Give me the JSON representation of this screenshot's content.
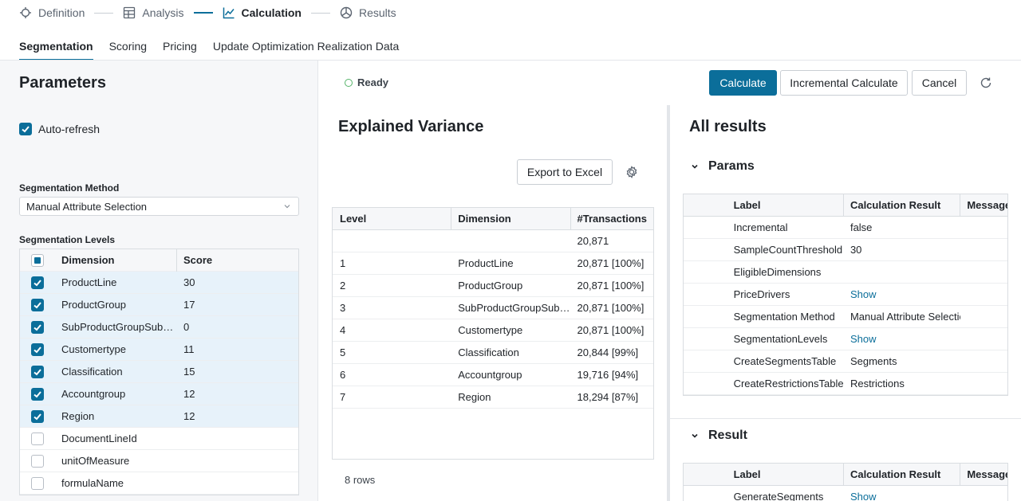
{
  "stepper": [
    {
      "label": "Definition",
      "icon": "crosshair-icon"
    },
    {
      "label": "Analysis",
      "icon": "table-icon"
    },
    {
      "label": "Calculation",
      "icon": "line-chart-icon"
    },
    {
      "label": "Results",
      "icon": "pie-chart-icon"
    }
  ],
  "tabs": [
    "Segmentation",
    "Scoring",
    "Pricing",
    "Update Optimization Realization Data"
  ],
  "left": {
    "title": "Parameters",
    "auto_refresh": "Auto-refresh",
    "method_label": "Segmentation Method",
    "method_value": "Manual Attribute Selection",
    "levels_label": "Segmentation Levels",
    "levels_header": {
      "dimension": "Dimension",
      "score": "Score"
    },
    "levels": [
      {
        "dimension": "ProductLine",
        "score": "30",
        "checked": true
      },
      {
        "dimension": "ProductGroup",
        "score": "17",
        "checked": true
      },
      {
        "dimension": "SubProductGroupSubProductGroup",
        "score": "0",
        "checked": true
      },
      {
        "dimension": "Customertype",
        "score": "11",
        "checked": true
      },
      {
        "dimension": "Classification",
        "score": "15",
        "checked": true
      },
      {
        "dimension": "Accountgroup",
        "score": "12",
        "checked": true
      },
      {
        "dimension": "Region",
        "score": "12",
        "checked": true
      },
      {
        "dimension": "DocumentLineId",
        "score": "",
        "checked": false
      },
      {
        "dimension": "unitOfMeasure",
        "score": "",
        "checked": false
      },
      {
        "dimension": "formulaName",
        "score": "",
        "checked": false
      }
    ]
  },
  "toolbar": {
    "status": "Ready",
    "calculate": "Calculate",
    "incremental": "Incremental Calculate",
    "cancel": "Cancel"
  },
  "middle": {
    "title": "Explained Variance",
    "export": "Export to Excel",
    "header": {
      "level": "Level",
      "dimension": "Dimension",
      "transactions": "#Transactions"
    },
    "rows": [
      {
        "level": "",
        "dimension": "",
        "transactions": "20,871"
      },
      {
        "level": "1",
        "dimension": "ProductLine",
        "transactions": "20,871 [100%]"
      },
      {
        "level": "2",
        "dimension": "ProductGroup",
        "transactions": "20,871 [100%]"
      },
      {
        "level": "3",
        "dimension": "SubProductGroupSubProductGroup",
        "transactions": "20,871 [100%]"
      },
      {
        "level": "4",
        "dimension": "Customertype",
        "transactions": "20,871 [100%]"
      },
      {
        "level": "5",
        "dimension": "Classification",
        "transactions": "20,844 [99%]"
      },
      {
        "level": "6",
        "dimension": "Accountgroup",
        "transactions": "19,716 [94%]"
      },
      {
        "level": "7",
        "dimension": "Region",
        "transactions": "18,294 [87%]"
      }
    ],
    "row_count": "8 rows"
  },
  "right": {
    "title": "All results",
    "params_section": "Params",
    "result_section": "Result",
    "header": {
      "label": "Label",
      "result": "Calculation Result",
      "message": "Message"
    },
    "params": [
      {
        "label": "Incremental",
        "result": "false",
        "link": false
      },
      {
        "label": "SampleCountThreshold",
        "result": "30",
        "link": false
      },
      {
        "label": "EligibleDimensions",
        "result": "",
        "link": false
      },
      {
        "label": "PriceDrivers",
        "result": "Show",
        "link": true
      },
      {
        "label": "Segmentation Method",
        "result": "Manual Attribute Selection",
        "link": false
      },
      {
        "label": "SegmentationLevels",
        "result": "Show",
        "link": true
      },
      {
        "label": "CreateSegmentsTable",
        "result": "Segments",
        "link": false
      },
      {
        "label": "CreateRestrictionsTable",
        "result": "Restrictions",
        "link": false
      }
    ],
    "results": [
      {
        "label": "GenerateSegments",
        "result": "Show",
        "link": true
      }
    ]
  }
}
